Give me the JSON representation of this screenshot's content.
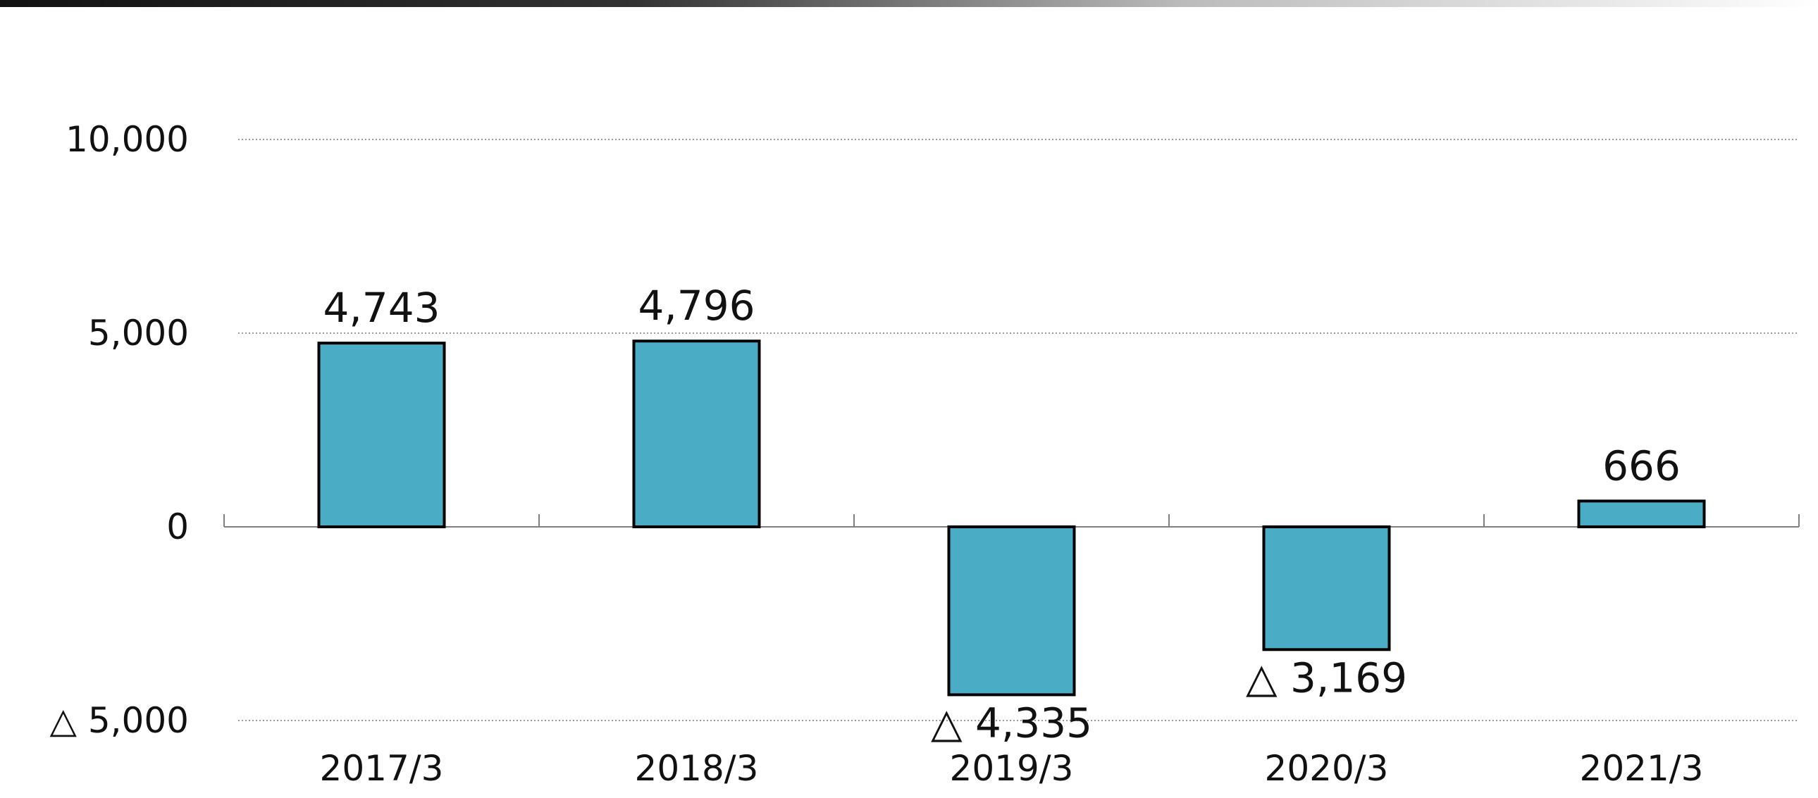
{
  "colors": {
    "bar_fill": "#4BACC6",
    "bar_stroke": "#000000",
    "grid": "#9a9a9a",
    "axis": "#7f7f7f",
    "top_bar_start": "#111111",
    "top_bar_end": "#ffffff"
  },
  "chart_data": {
    "type": "bar",
    "categories": [
      "2017/3",
      "2018/3",
      "2019/3",
      "2020/3",
      "2021/3"
    ],
    "values": [
      4743,
      4796,
      -4335,
      -3169,
      666
    ],
    "data_labels": [
      "4,743",
      "4,796",
      "△ 4,335",
      "△ 3,169",
      "666"
    ],
    "y_ticks": [
      {
        "value": 10000,
        "label": "10,000"
      },
      {
        "value": 5000,
        "label": "5,000"
      },
      {
        "value": 0,
        "label": "0"
      },
      {
        "value": -5000,
        "label": "△ 5,000"
      }
    ],
    "ylim": [
      -5000,
      10000
    ],
    "grid": true,
    "grid_style": "dotted",
    "title": "",
    "xlabel": "",
    "ylabel": ""
  }
}
